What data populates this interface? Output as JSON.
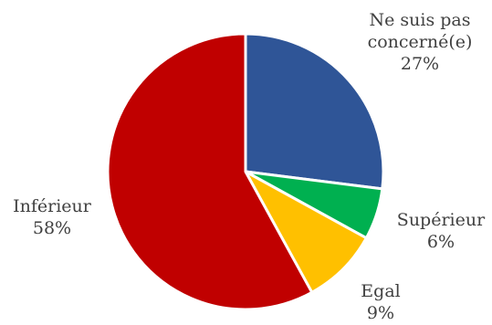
{
  "chart_data": {
    "type": "pie",
    "title": "",
    "slices": [
      {
        "label_lines": [
          "Ne suis pas",
          "concerné(e)"
        ],
        "value": 27,
        "value_label": "27%",
        "color": "#2F5597"
      },
      {
        "label_lines": [
          "Supérieur"
        ],
        "value": 6,
        "value_label": "6%",
        "color": "#00B050"
      },
      {
        "label_lines": [
          "Egal"
        ],
        "value": 9,
        "value_label": "9%",
        "color": "#FFC000"
      },
      {
        "label_lines": [
          "Inférieur"
        ],
        "value": 58,
        "value_label": "58%",
        "color": "#C00000"
      }
    ],
    "start_angle_deg": 0,
    "direction": "clockwise",
    "legend": "none",
    "data_labels": "outside"
  }
}
